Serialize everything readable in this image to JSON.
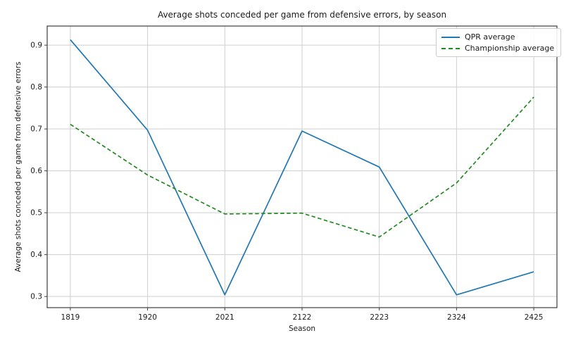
{
  "chart_data": {
    "type": "line",
    "title": "Average shots conceded per game from defensive errors, by season",
    "xlabel": "Season",
    "ylabel": "Average shots conceded per game from defensive errors",
    "categories": [
      "1819",
      "1920",
      "2021",
      "2122",
      "2223",
      "2324",
      "2425"
    ],
    "series": [
      {
        "name": "QPR average",
        "color": "#1f77b4",
        "style": "solid",
        "values": [
          0.913,
          0.697,
          0.304,
          0.695,
          0.609,
          0.304,
          0.359
        ]
      },
      {
        "name": "Championship average",
        "color": "#228B22",
        "style": "dashed",
        "values": [
          0.711,
          0.59,
          0.497,
          0.499,
          0.442,
          0.571,
          0.776
        ]
      }
    ],
    "yticks": [
      0.3,
      0.4,
      0.5,
      0.6,
      0.7,
      0.8,
      0.9
    ],
    "ylim": [
      0.2734,
      0.9456
    ],
    "grid": true,
    "legend_position": "upper right"
  }
}
